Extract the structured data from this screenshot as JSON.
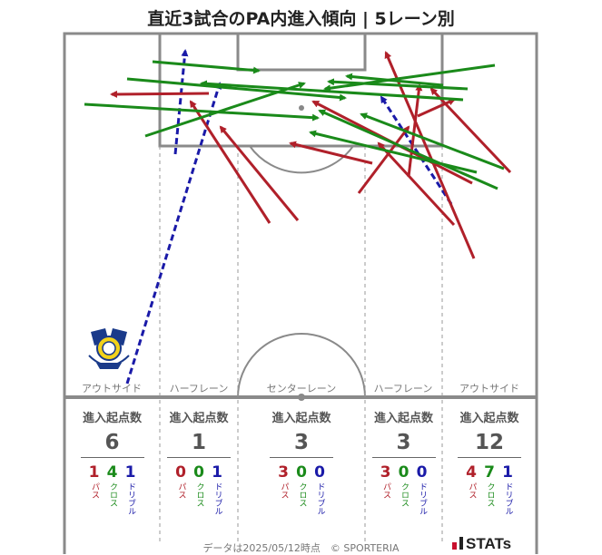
{
  "title": "直近3試合のPA内進入傾向 | 5レーン別",
  "colors": {
    "pass": "#b0202a",
    "cross": "#1a8a1a",
    "dribble": "#1a1aa8"
  },
  "lanes": [
    {
      "name": "アウトサイド",
      "header": "進入起点数",
      "total": "6",
      "pass": "1",
      "cross": "4",
      "dribble": "1",
      "pass_label": "パス",
      "cross_label": "クロス",
      "dribble_label": "ドリブル"
    },
    {
      "name": "ハーフレーン",
      "header": "進入起点数",
      "total": "1",
      "pass": "0",
      "cross": "0",
      "dribble": "1",
      "pass_label": "パス",
      "cross_label": "クロス",
      "dribble_label": "ドリブル"
    },
    {
      "name": "センターレーン",
      "header": "進入起点数",
      "total": "3",
      "pass": "3",
      "cross": "0",
      "dribble": "0",
      "pass_label": "パス",
      "cross_label": "クロス",
      "dribble_label": "ドリブル"
    },
    {
      "name": "ハーフレーン",
      "header": "進入起点数",
      "total": "3",
      "pass": "3",
      "cross": "0",
      "dribble": "0",
      "pass_label": "パス",
      "cross_label": "クロス",
      "dribble_label": "ドリブル"
    },
    {
      "name": "アウトサイド",
      "header": "進入起点数",
      "total": "12",
      "pass": "4",
      "cross": "7",
      "dribble": "1",
      "pass_label": "パス",
      "cross_label": "クロス",
      "dribble_label": "ドリブル"
    }
  ],
  "footer": "データは2025/05/12時点　© SPORTERIA",
  "brand": "STATs",
  "chart_data": {
    "type": "scatter",
    "title": "直近3試合のPA内進入傾向 | 5レーン別",
    "series_types": [
      "pass",
      "cross",
      "dribble"
    ],
    "arrows": [
      {
        "type": "dribble",
        "from": [
          140,
          423
        ],
        "to": [
          242,
          92
        ]
      },
      {
        "type": "dribble",
        "from": [
          193,
          170
        ],
        "to": [
          204,
          56
        ]
      },
      {
        "type": "dribble",
        "from": [
          497,
          225
        ],
        "to": [
          420,
          107
        ]
      },
      {
        "type": "pass",
        "from": [
          297,
          246
        ],
        "to": [
          210,
          112
        ]
      },
      {
        "type": "pass",
        "from": [
          328,
          243
        ],
        "to": [
          243,
          140
        ]
      },
      {
        "type": "pass",
        "from": [
          230,
          103
        ],
        "to": [
          123,
          104
        ]
      },
      {
        "type": "pass",
        "from": [
          522,
          285
        ],
        "to": [
          425,
          58
        ]
      },
      {
        "type": "pass",
        "from": [
          500,
          248
        ],
        "to": [
          417,
          158
        ]
      },
      {
        "type": "pass",
        "from": [
          562,
          190
        ],
        "to": [
          475,
          98
        ]
      },
      {
        "type": "pass",
        "from": [
          395,
          213
        ],
        "to": [
          450,
          140
        ]
      },
      {
        "type": "pass",
        "from": [
          410,
          180
        ],
        "to": [
          320,
          158
        ]
      },
      {
        "type": "pass",
        "from": [
          520,
          202
        ],
        "to": [
          345,
          112
        ]
      },
      {
        "type": "pass",
        "from": [
          450,
          195
        ],
        "to": [
          462,
          94
        ]
      },
      {
        "type": "pass",
        "from": [
          460,
          128
        ],
        "to": [
          500,
          110
        ]
      },
      {
        "type": "cross",
        "from": [
          168,
          68
        ],
        "to": [
          285,
          78
        ]
      },
      {
        "type": "cross",
        "from": [
          140,
          87
        ],
        "to": [
          380,
          108
        ]
      },
      {
        "type": "cross",
        "from": [
          93,
          115
        ],
        "to": [
          350,
          130
        ]
      },
      {
        "type": "cross",
        "from": [
          160,
          150
        ],
        "to": [
          335,
          92
        ]
      },
      {
        "type": "cross",
        "from": [
          545,
          72
        ],
        "to": [
          358,
          98
        ]
      },
      {
        "type": "cross",
        "from": [
          515,
          98
        ],
        "to": [
          362,
          90
        ]
      },
      {
        "type": "cross",
        "from": [
          548,
          208
        ],
        "to": [
          352,
          122
        ]
      },
      {
        "type": "cross",
        "from": [
          525,
          190
        ],
        "to": [
          342,
          146
        ]
      },
      {
        "type": "cross",
        "from": [
          510,
          110
        ],
        "to": [
          222,
          92
        ]
      },
      {
        "type": "cross",
        "from": [
          555,
          186
        ],
        "to": [
          398,
          126
        ]
      },
      {
        "type": "cross",
        "from": [
          488,
          94
        ],
        "to": [
          382,
          84
        ]
      }
    ]
  }
}
